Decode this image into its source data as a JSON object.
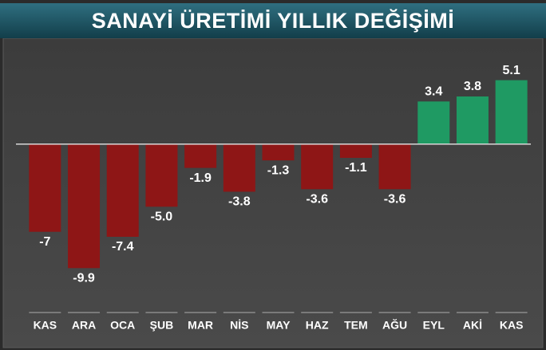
{
  "chart_data": {
    "type": "bar",
    "title": "SANAYİ ÜRETİMİ YILLIK DEĞİŞİMİ",
    "categories": [
      "KAS",
      "ARA",
      "OCA",
      "ŞUB",
      "MAR",
      "NİS",
      "MAY",
      "HAZ",
      "TEM",
      "AĞU",
      "EYL",
      "AKİ",
      "KAS"
    ],
    "values": [
      -7,
      -9.9,
      -7.4,
      -5.0,
      -1.9,
      -3.8,
      -1.3,
      -3.6,
      -1.1,
      -3.6,
      3.4,
      3.8,
      5.1
    ],
    "value_labels": [
      "-7",
      "-9.9",
      "-7.4",
      "-5.0",
      "-1.9",
      "-3.8",
      "-1.3",
      "-3.6",
      "-1.1",
      "-3.6",
      "3.4",
      "3.8",
      "5.1"
    ],
    "color_negative": "#8e1616",
    "color_positive": "#1f9a63",
    "ylim": [
      -13,
      8
    ]
  }
}
